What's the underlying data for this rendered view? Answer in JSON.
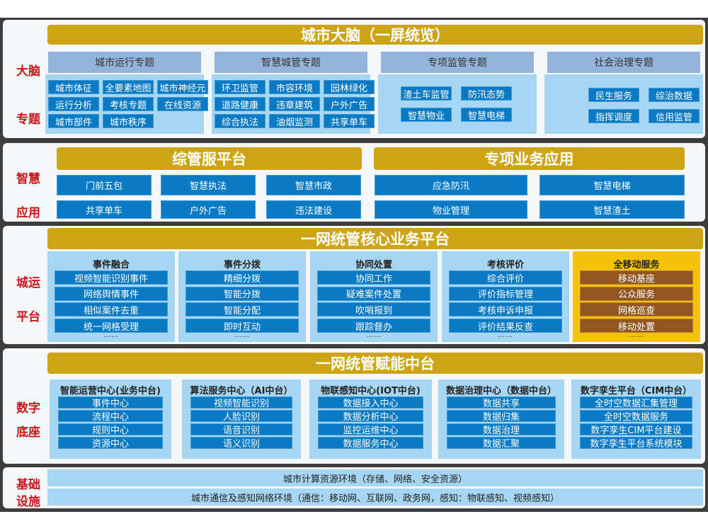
{
  "colors": {
    "gold": "#cca414",
    "header": "#94b4dc",
    "panel": "#a7d6f2",
    "button": "#0a7ac4",
    "mobile_panel": "#f5c20a",
    "mobile_button": "#93561f",
    "side_label": "#c8161d"
  },
  "brain": {
    "side": [
      "大脑",
      "专题"
    ],
    "title": "城市大脑（一屏统览）",
    "topics": [
      {
        "header": "城市运行专题",
        "items": [
          "城市体征",
          "全要素地图",
          "城市神经元",
          "运行分析",
          "考核专题",
          "在线资源",
          "城市部件",
          "城市秩序"
        ]
      },
      {
        "header": "智慧城管专题",
        "items": [
          "环卫监管",
          "市容环境",
          "园林绿化",
          "道路健康",
          "违章建筑",
          "户外广告",
          "综合执法",
          "油烟监测",
          "共享单车"
        ]
      },
      {
        "header": "专项监管专题",
        "items": [
          "渣土车监管",
          "防汛态势",
          "智慧物业",
          "智慧电梯"
        ]
      },
      {
        "header": "社会治理专题",
        "items": [
          "民生服务",
          "综治数据",
          "指挥调度",
          "信用监管"
        ]
      }
    ]
  },
  "apps": {
    "side": [
      "智慧",
      "应用"
    ],
    "left": {
      "title": "综管服平台",
      "items": [
        "门前五包",
        "智慧执法",
        "智慧市政",
        "共享单车",
        "户外广告",
        "违法建设"
      ]
    },
    "right": {
      "title": "专项业务应用",
      "items": [
        "应急防汛",
        "智慧电梯",
        "物业管理",
        "智慧渣土"
      ]
    }
  },
  "ops": {
    "side": [
      "城运",
      "平台"
    ],
    "title": "一网统管核心业务平台",
    "more": "……",
    "columns": [
      {
        "title": "事件融合",
        "items": [
          "视频智能识别事件",
          "网络舆情事件",
          "相似案件去重",
          "统一网格受理"
        ]
      },
      {
        "title": "事件分拨",
        "items": [
          "精细分拨",
          "智能分拨",
          "智能分配",
          "即时互动"
        ]
      },
      {
        "title": "协同处置",
        "items": [
          "协同工作",
          "疑难案件处置",
          "吹哨报到",
          "跟踪督办"
        ]
      },
      {
        "title": "考核评价",
        "items": [
          "综合评价",
          "评价指标管理",
          "考核申诉申报",
          "评价结果反查"
        ]
      },
      {
        "title": "全移动服务",
        "items": [
          "移动基座",
          "公众服务",
          "网格巡查",
          "移动处置"
        ]
      }
    ]
  },
  "base": {
    "side": [
      "数字",
      "底座"
    ],
    "title": "一网统管赋能中台",
    "columns": [
      {
        "title": "智能运营中心(业务中台)",
        "items": [
          "事件中心",
          "流程中心",
          "规则中心",
          "资源中心"
        ]
      },
      {
        "title": "算法服务中心（AI中台）",
        "items": [
          "视频智能识别",
          "人脸识别",
          "语音识别",
          "语义识别"
        ]
      },
      {
        "title": "物联感知中心(IOT中台)",
        "items": [
          "数据接入中心",
          "数据分析中心",
          "监控运维中心",
          "数据服务中心"
        ]
      },
      {
        "title": "数据治理中心（数据中台）",
        "items": [
          "数据共享",
          "数据归集",
          "数据治理",
          "数据汇聚"
        ]
      },
      {
        "title": "数字孪生平台（CIM中台）",
        "items": [
          "全时空数据汇集管理",
          "全时空数据服务",
          "数字孪生CIM平台建设",
          "数字孪生平台系统模块"
        ]
      }
    ]
  },
  "infra": {
    "side": [
      "基础",
      "设施"
    ],
    "rows": [
      "城市计算资源环境（存储、网络、安全资源）",
      "城市通信及感知网络环境（通信：移动网、互联网、政务网，感知：物联感知、视频感知）"
    ]
  }
}
